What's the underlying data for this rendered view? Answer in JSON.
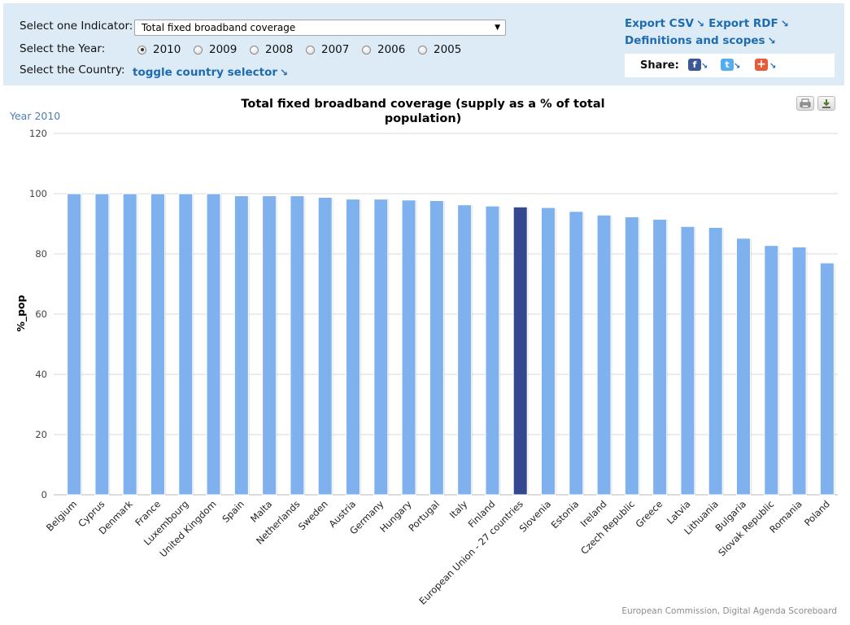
{
  "controls": {
    "indicator_label": "Select one Indicator:",
    "indicator_value": "Total fixed broadband coverage",
    "year_label": "Select the Year:",
    "years": [
      "2010",
      "2009",
      "2008",
      "2007",
      "2006",
      "2005"
    ],
    "selected_year": "2010",
    "country_label": "Select the Country:",
    "country_toggle": "toggle country selector"
  },
  "links": {
    "export_csv": "Export CSV",
    "export_rdf": "Export RDF",
    "definitions": "Definitions and scopes",
    "share_label": "Share:"
  },
  "year_display": "Year 2010",
  "credits": "European Commission, Digital Agenda Scoreboard",
  "colors": {
    "bar": "#7eb1ed",
    "bar_highlight": "#34488f",
    "grid": "#d8d8d8",
    "panel": "#dcebf5",
    "link": "#1f6bb0"
  },
  "chart_data": {
    "type": "bar",
    "title": "Total fixed broadband coverage (supply as a % of total population)",
    "ylabel": "%_pop",
    "xlabel": "",
    "ylim": [
      0,
      120
    ],
    "yticks": [
      0,
      20,
      40,
      60,
      80,
      100,
      120
    ],
    "grid": true,
    "highlight": "European Union - 27 countries",
    "categories": [
      "Belgium",
      "Cyprus",
      "Denmark",
      "France",
      "Luxembourg",
      "United Kingdom",
      "Spain",
      "Malta",
      "Netherlands",
      "Sweden",
      "Austria",
      "Germany",
      "Hungary",
      "Portugal",
      "Italy",
      "Finland",
      "European Union - 27 countries",
      "Slovenia",
      "Estonia",
      "Ireland",
      "Czech Republic",
      "Greece",
      "Latvia",
      "Lithuania",
      "Bulgaria",
      "Slovak Republic",
      "Romania",
      "Poland"
    ],
    "values": [
      100,
      100,
      100,
      100,
      100,
      100,
      99.3,
      99.3,
      99.3,
      98.8,
      98.2,
      98.2,
      97.9,
      97.7,
      96.3,
      95.9,
      95.6,
      95.4,
      94.1,
      92.9,
      92.3,
      91.5,
      89.1,
      88.8,
      85.2,
      82.8,
      82.3,
      77
    ]
  }
}
